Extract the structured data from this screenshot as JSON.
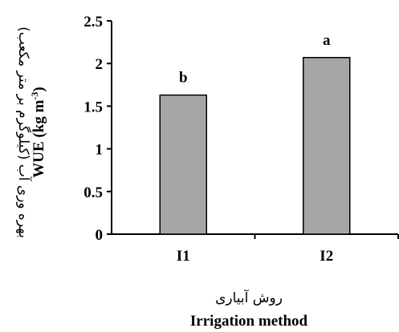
{
  "chart_data": {
    "type": "bar",
    "categories": [
      "I1",
      "I2"
    ],
    "values": [
      1.63,
      2.07
    ],
    "data_labels": [
      "b",
      "a"
    ],
    "ylim": [
      0,
      2.5
    ],
    "yticks": [
      "0",
      "0.5",
      "1",
      "1.5",
      "2",
      "2.5"
    ],
    "ylabel_fa": "بهره وری آب (کیلوگرم بر متر مکعب)",
    "ylabel_en": "WUE (kg m",
    "ylabel_en_sup": "-3",
    "ylabel_en_end": ")",
    "xlabel_fa": "روش آبیاری",
    "xlabel_en": "Irrigation method",
    "bar_color": "#a6a6a6",
    "grid": false,
    "legend": "none"
  }
}
